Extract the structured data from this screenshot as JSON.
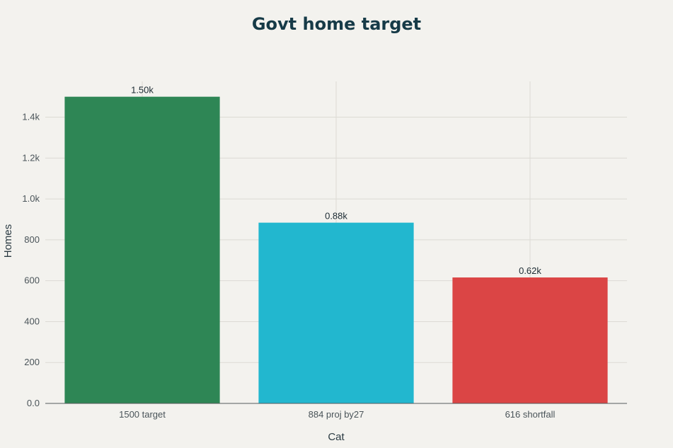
{
  "chart_data": {
    "type": "bar",
    "title": "Govt home target",
    "xlabel": "Cat",
    "ylabel": "Homes",
    "categories": [
      "1500 target",
      "884 proj by27",
      "616 shortfall"
    ],
    "values": [
      1500,
      884,
      616
    ],
    "data_labels": [
      "1.50k",
      "0.88k",
      "0.62k"
    ],
    "colors": [
      "#2e8655",
      "#22b7cf",
      "#db4545"
    ],
    "yticks": [
      0,
      200,
      400,
      600,
      800,
      1000,
      1200,
      1400
    ],
    "ytick_labels": [
      "0.0",
      "200",
      "400",
      "600",
      "800",
      "1.0k",
      "1.2k",
      "1.4k"
    ],
    "ylim": [
      0,
      1575
    ],
    "grid": true,
    "legend": "none"
  }
}
